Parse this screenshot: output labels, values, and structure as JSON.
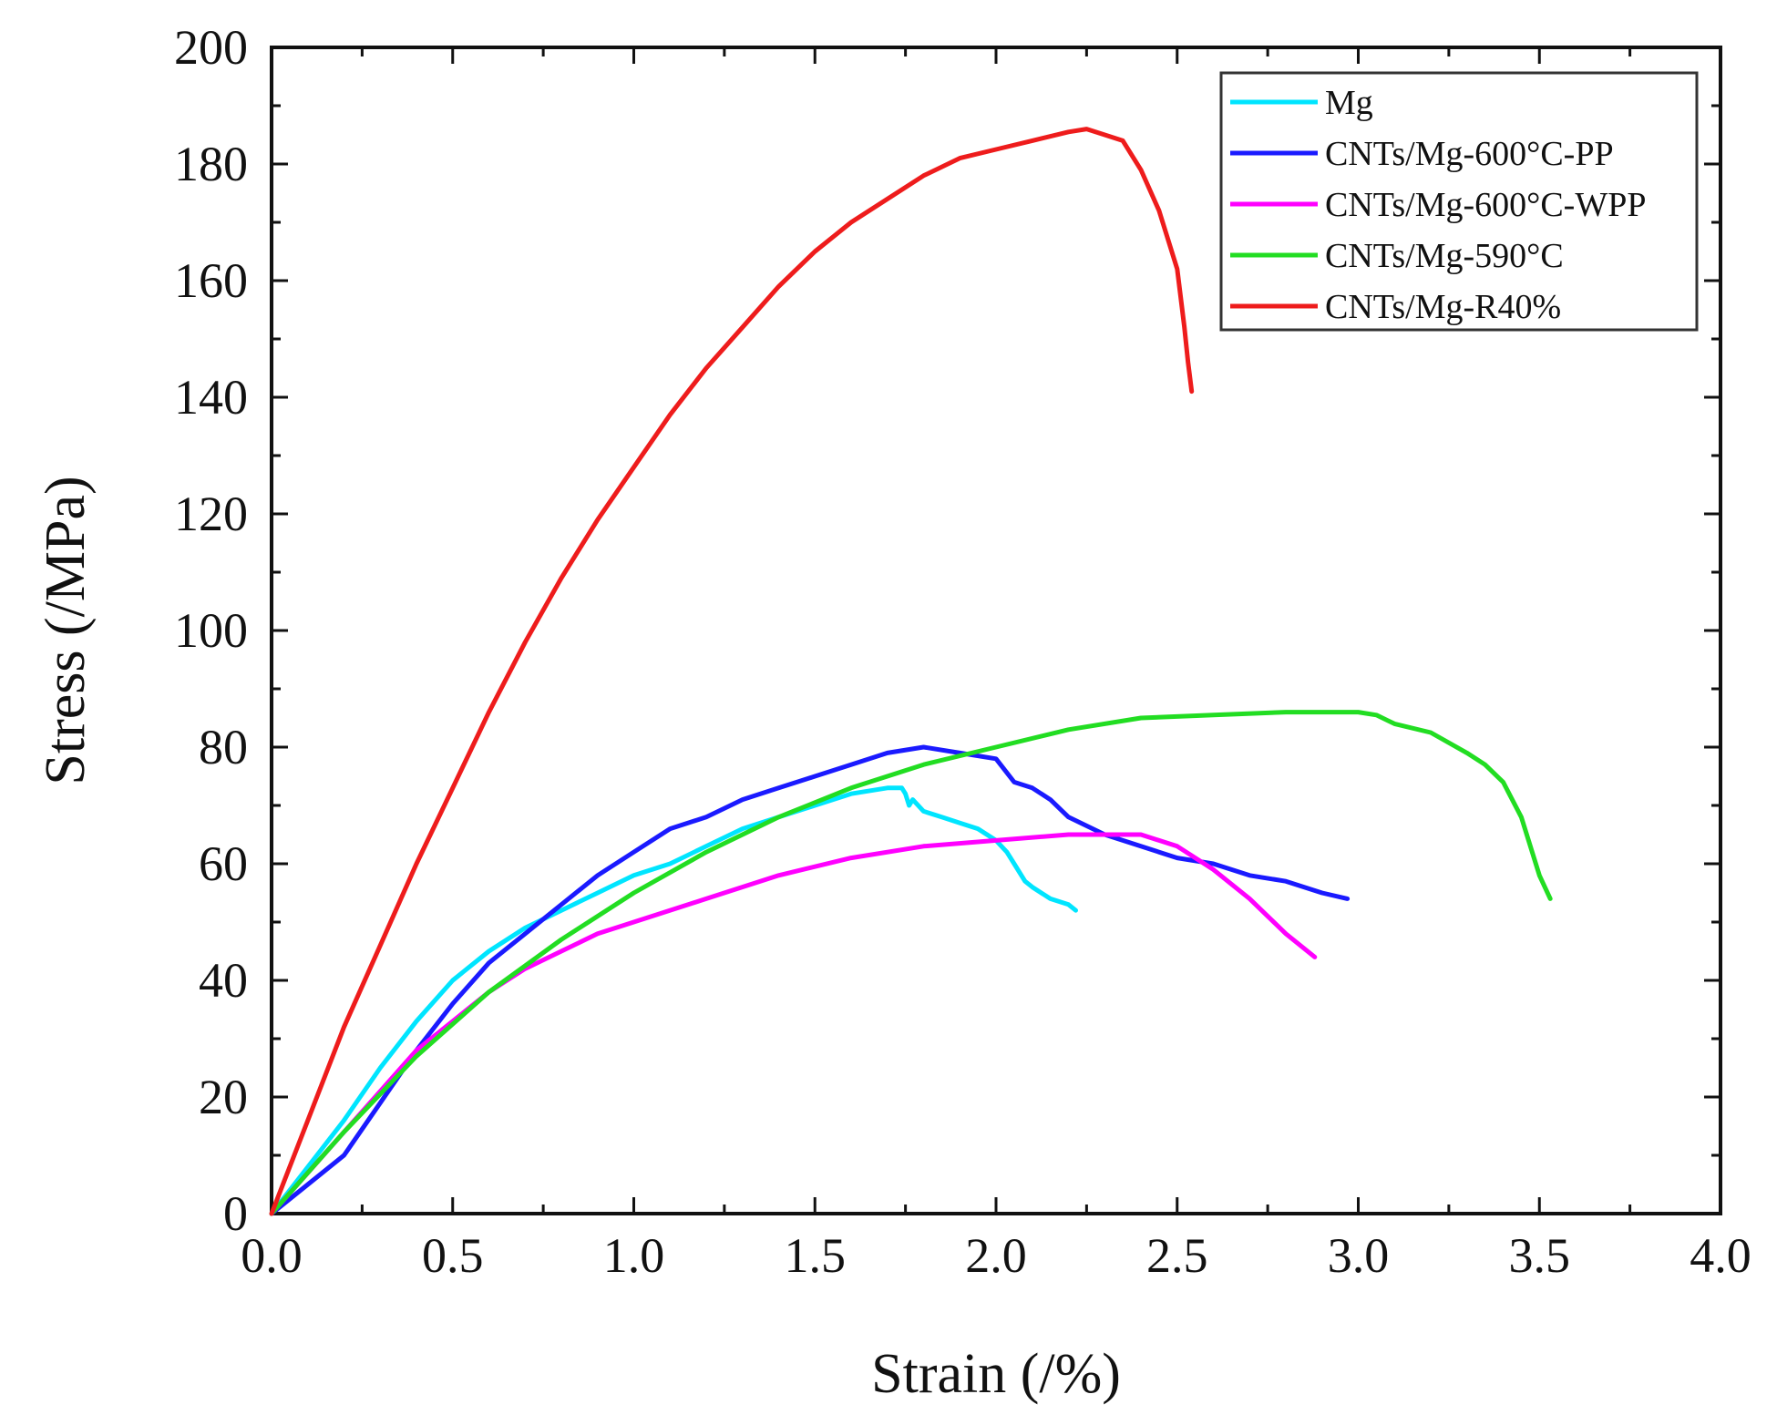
{
  "chart_data": {
    "type": "line",
    "title": "",
    "xlabel": "Strain (/%)",
    "ylabel": "Stress (/MPa)",
    "xlim": [
      0,
      4.0
    ],
    "ylim": [
      0,
      200
    ],
    "xticks": [
      0,
      0.5,
      1.0,
      1.5,
      2.0,
      2.5,
      3.0,
      3.5,
      4.0
    ],
    "xtick_labels": [
      "0.0",
      "0.5",
      "1.0",
      "1.5",
      "2.0",
      "2.5",
      "3.0",
      "3.5",
      "4.0"
    ],
    "yticks": [
      0,
      20,
      40,
      60,
      80,
      100,
      120,
      140,
      160,
      180,
      200
    ],
    "ytick_labels": [
      "0",
      "20",
      "40",
      "60",
      "80",
      "100",
      "120",
      "140",
      "160",
      "180",
      "200"
    ],
    "grid": false,
    "legend_position": "top-right",
    "series": [
      {
        "name": "Mg",
        "color": "#00e5ff",
        "x": [
          0,
          0.1,
          0.2,
          0.3,
          0.4,
          0.5,
          0.6,
          0.7,
          0.8,
          0.9,
          1.0,
          1.1,
          1.2,
          1.3,
          1.4,
          1.5,
          1.6,
          1.7,
          1.74,
          1.75,
          1.76,
          1.77,
          1.8,
          1.85,
          1.9,
          1.95,
          2.0,
          2.03,
          2.05,
          2.08,
          2.1,
          2.15,
          2.2,
          2.22
        ],
        "y": [
          0,
          8,
          16,
          25,
          33,
          40,
          45,
          49,
          52,
          55,
          58,
          60,
          63,
          66,
          68,
          70,
          72,
          73,
          73,
          72,
          70,
          71,
          69,
          68,
          67,
          66,
          64,
          62,
          60,
          57,
          56,
          54,
          53,
          52
        ]
      },
      {
        "name": "CNTs/Mg-600°C-PP",
        "color": "#1a1aff",
        "x": [
          0,
          0.1,
          0.2,
          0.3,
          0.4,
          0.5,
          0.6,
          0.7,
          0.8,
          0.9,
          1.0,
          1.1,
          1.2,
          1.3,
          1.4,
          1.5,
          1.6,
          1.7,
          1.8,
          1.9,
          2.0,
          2.05,
          2.1,
          2.15,
          2.2,
          2.3,
          2.4,
          2.5,
          2.6,
          2.7,
          2.8,
          2.9,
          2.97
        ],
        "y": [
          0,
          5,
          10,
          19,
          28,
          36,
          43,
          48,
          53,
          58,
          62,
          66,
          68,
          71,
          73,
          75,
          77,
          79,
          80,
          79,
          78,
          74,
          73,
          71,
          68,
          65,
          63,
          61,
          60,
          58,
          57,
          55,
          54
        ]
      },
      {
        "name": "CNTs/Mg-600°C-WPP",
        "color": "#ff00ff",
        "x": [
          0,
          0.1,
          0.2,
          0.3,
          0.4,
          0.5,
          0.6,
          0.7,
          0.8,
          0.9,
          1.0,
          1.2,
          1.4,
          1.6,
          1.8,
          2.0,
          2.2,
          2.4,
          2.5,
          2.6,
          2.7,
          2.8,
          2.88
        ],
        "y": [
          0,
          7,
          14,
          21,
          28,
          33,
          38,
          42,
          45,
          48,
          50,
          54,
          58,
          61,
          63,
          64,
          65,
          65,
          63,
          59,
          54,
          48,
          44
        ]
      },
      {
        "name": "CNTs/Mg-590°C",
        "color": "#22dd22",
        "x": [
          0,
          0.2,
          0.4,
          0.6,
          0.8,
          1.0,
          1.2,
          1.4,
          1.6,
          1.8,
          2.0,
          2.2,
          2.4,
          2.6,
          2.8,
          3.0,
          3.05,
          3.1,
          3.2,
          3.3,
          3.35,
          3.4,
          3.45,
          3.5,
          3.53
        ],
        "y": [
          0,
          14,
          27,
          38,
          47,
          55,
          62,
          68,
          73,
          77,
          80,
          83,
          85,
          85.5,
          86,
          86,
          85.5,
          84,
          82.5,
          79,
          77,
          74,
          68,
          58,
          54
        ]
      },
      {
        "name": "CNTs/Mg-R40%",
        "color": "#ee1c1c",
        "x": [
          0,
          0.1,
          0.2,
          0.3,
          0.4,
          0.5,
          0.6,
          0.7,
          0.8,
          0.9,
          1.0,
          1.1,
          1.2,
          1.3,
          1.4,
          1.5,
          1.6,
          1.7,
          1.8,
          1.9,
          2.0,
          2.1,
          2.2,
          2.25,
          2.3,
          2.35,
          2.4,
          2.45,
          2.5,
          2.52,
          2.53,
          2.54
        ],
        "y": [
          0,
          16,
          32,
          46,
          60,
          73,
          86,
          98,
          109,
          119,
          128,
          137,
          145,
          152,
          159,
          165,
          170,
          174,
          178,
          181,
          182.5,
          184,
          185.5,
          186,
          185,
          184,
          179,
          172,
          162,
          152,
          146,
          141
        ]
      }
    ]
  }
}
